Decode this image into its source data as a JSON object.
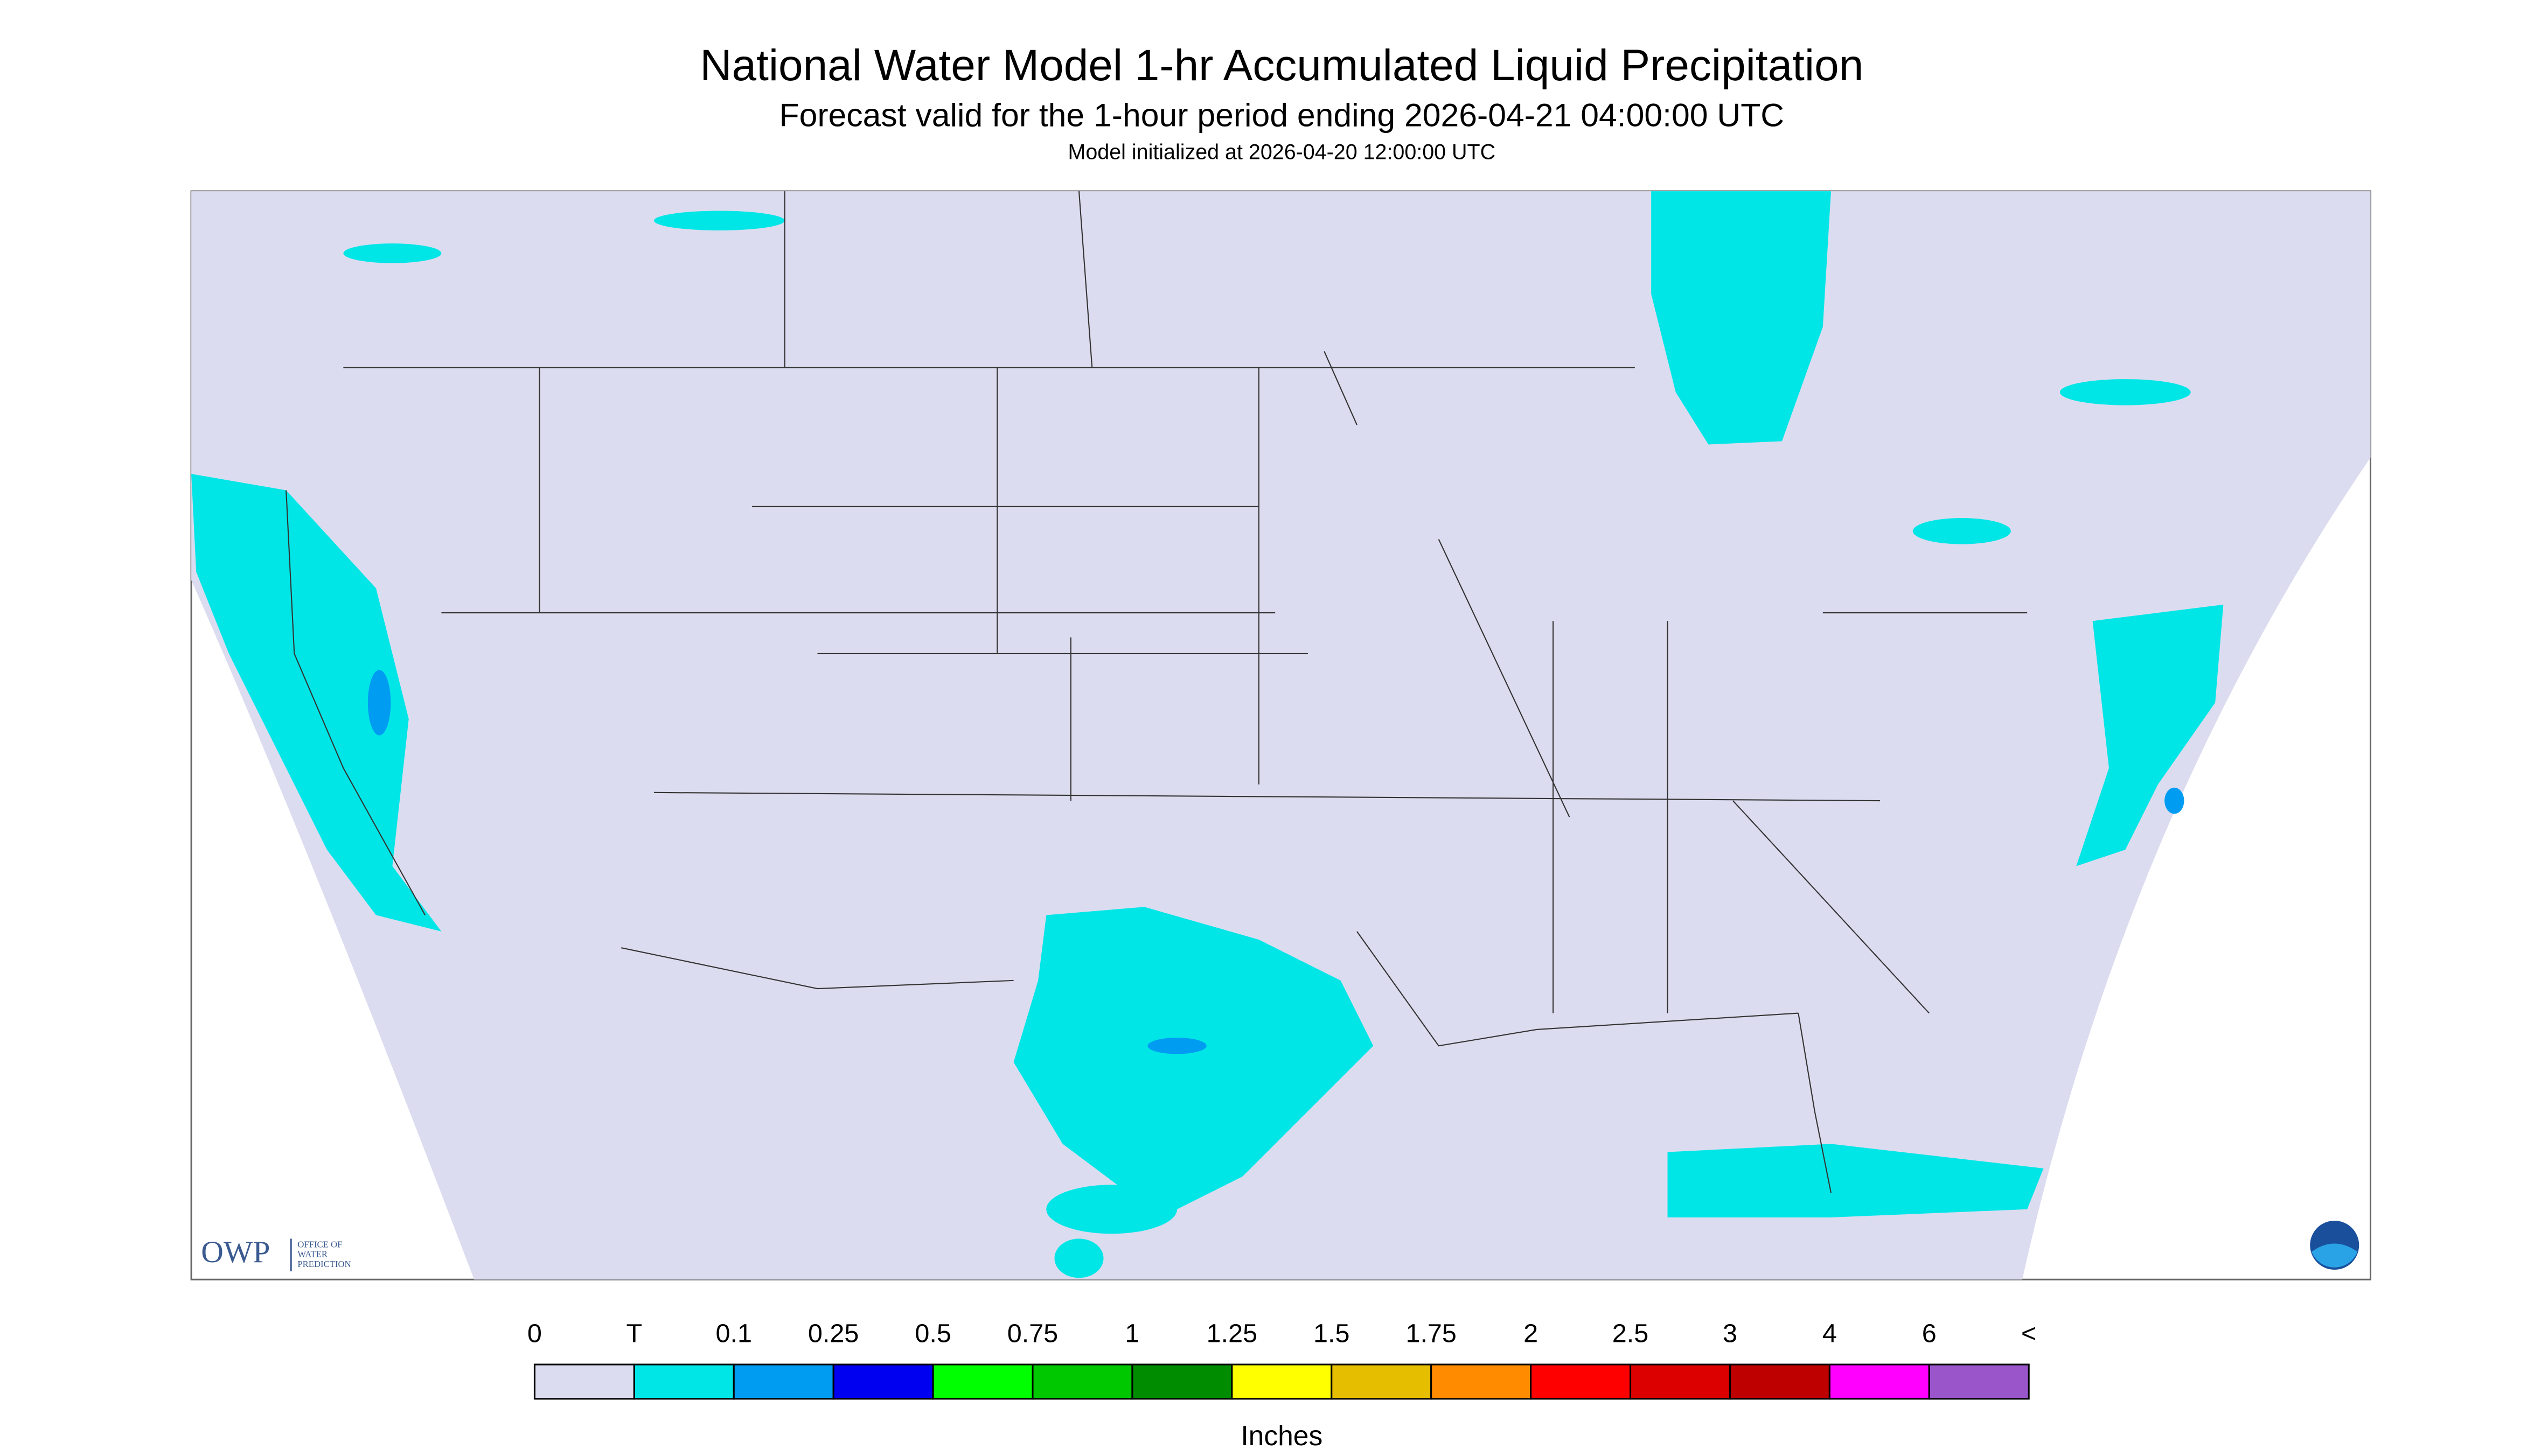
{
  "header": {
    "title": "National Water Model 1-hr Accumulated Liquid Precipitation",
    "subtitle": "Forecast valid for the 1-hour period ending 2026-04-21 04:00:00 UTC",
    "note": "Model initialized at 2026-04-20 12:00:00 UTC"
  },
  "logo": {
    "abbr": "OWP",
    "name": [
      "OFFICE OF",
      "WATER",
      "PREDICTION"
    ]
  },
  "legend": {
    "labels": [
      "0",
      "T",
      "0.1",
      "0.25",
      "0.5",
      "0.75",
      "1",
      "1.25",
      "1.5",
      "1.75",
      "2",
      "2.5",
      "3",
      "4",
      "6",
      "<"
    ],
    "colors": [
      "#dcdcf0",
      "#00e6e6",
      "#009cf2",
      "#0000f0",
      "#00ff00",
      "#00c800",
      "#008c00",
      "#ffff00",
      "#e6be00",
      "#ff8c00",
      "#ff0000",
      "#dc0000",
      "#be0000",
      "#ff00ff",
      "#9955c9"
    ],
    "unit": "Inches"
  }
}
